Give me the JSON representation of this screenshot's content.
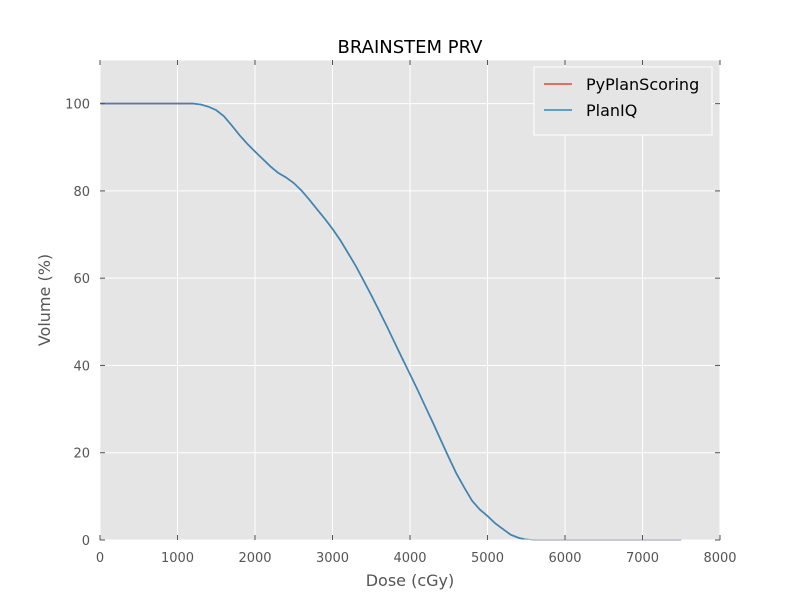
{
  "chart_data": {
    "type": "line",
    "title": "BRAINSTEM PRV",
    "xlabel": "Dose (cGy)",
    "ylabel": "Volume (%)",
    "xlim": [
      0,
      8000
    ],
    "ylim": [
      0,
      110
    ],
    "xticks": [
      0,
      1000,
      2000,
      3000,
      4000,
      5000,
      6000,
      7000,
      8000
    ],
    "yticks": [
      0,
      20,
      40,
      60,
      80,
      100
    ],
    "grid": true,
    "legend_position": "top-right",
    "background": "#e5e5e5",
    "series": [
      {
        "name": "PyPlanScoring",
        "color": "#e24a33",
        "x": [
          0,
          1200,
          1300,
          1400,
          1500,
          1600,
          1700,
          1800,
          1900,
          2000,
          2100,
          2200,
          2300,
          2400,
          2500,
          2600,
          2700,
          2800,
          2900,
          3000,
          3100,
          3200,
          3300,
          3400,
          3500,
          3600,
          3700,
          3800,
          3900,
          4000,
          4100,
          4200,
          4300,
          4400,
          4500,
          4600,
          4700,
          4800,
          4900,
          5000,
          5100,
          5200,
          5300,
          5400,
          5500,
          5600,
          5700,
          5800,
          6000,
          7000,
          7500
        ],
        "y": [
          100,
          100,
          99.8,
          99.3,
          98.5,
          97.1,
          95.0,
          92.8,
          90.8,
          89.0,
          87.3,
          85.6,
          84.1,
          83.1,
          81.8,
          80.1,
          78.0,
          75.8,
          73.6,
          71.3,
          68.7,
          65.8,
          62.8,
          59.5,
          56.1,
          52.6,
          49.0,
          45.3,
          41.6,
          38.0,
          34.3,
          30.5,
          26.7,
          22.8,
          18.9,
          15.2,
          12.0,
          9.0,
          7.0,
          5.5,
          3.8,
          2.5,
          1.2,
          0.5,
          0.1,
          0,
          0,
          0,
          0,
          0,
          0
        ]
      },
      {
        "name": "PlanIQ",
        "color": "#348abd",
        "x": [
          0,
          1200,
          1300,
          1400,
          1500,
          1600,
          1700,
          1800,
          1900,
          2000,
          2100,
          2200,
          2300,
          2400,
          2500,
          2600,
          2700,
          2800,
          2900,
          3000,
          3100,
          3200,
          3300,
          3400,
          3500,
          3600,
          3700,
          3800,
          3900,
          4000,
          4100,
          4200,
          4300,
          4400,
          4500,
          4600,
          4700,
          4800,
          4900,
          5000,
          5100,
          5200,
          5300,
          5400,
          5500,
          5600,
          5700,
          5800,
          6000,
          7000,
          7500
        ],
        "y": [
          100,
          100,
          99.8,
          99.3,
          98.5,
          97.1,
          95.0,
          92.8,
          90.8,
          89.0,
          87.3,
          85.6,
          84.1,
          83.1,
          81.8,
          80.1,
          78.0,
          75.8,
          73.6,
          71.3,
          68.7,
          65.8,
          62.8,
          59.5,
          56.1,
          52.6,
          49.0,
          45.3,
          41.6,
          38.0,
          34.3,
          30.5,
          26.7,
          22.8,
          18.9,
          15.2,
          12.0,
          9.0,
          7.0,
          5.5,
          3.8,
          2.5,
          1.2,
          0.5,
          0.1,
          0,
          0,
          0,
          0,
          0,
          0
        ]
      }
    ]
  }
}
